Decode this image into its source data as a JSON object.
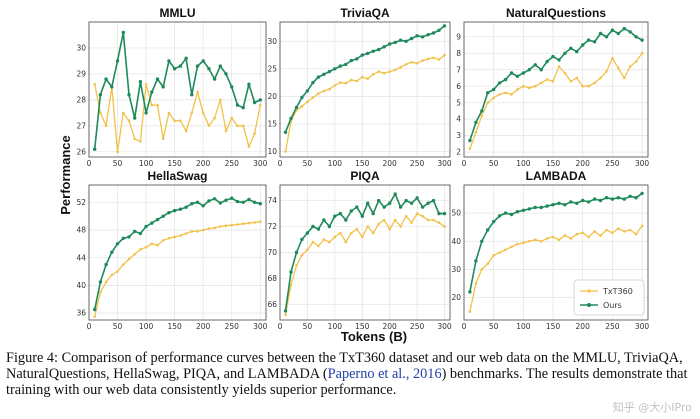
{
  "figure": {
    "ylabel": "Performance",
    "xlabel": "Tokens (B)",
    "legend": {
      "entries": [
        "TxT360",
        "Ours"
      ]
    }
  },
  "colors": {
    "txt360": "#f2c14a",
    "ours": "#1e8a5a"
  },
  "chart_data": [
    {
      "type": "line",
      "title": "MMLU",
      "xlim": [
        0,
        310
      ],
      "ylim": [
        25.8,
        31.0
      ],
      "xticks": [
        0,
        50,
        100,
        150,
        200,
        250,
        300
      ],
      "yticks": [
        26,
        27,
        28,
        29,
        30
      ],
      "x": [
        10,
        20,
        30,
        40,
        50,
        60,
        70,
        80,
        90,
        100,
        110,
        120,
        130,
        140,
        150,
        160,
        170,
        180,
        190,
        200,
        210,
        220,
        230,
        240,
        250,
        260,
        270,
        280,
        290,
        300
      ],
      "series": [
        {
          "name": "TxT360",
          "values": [
            28.6,
            27.5,
            27.0,
            28.5,
            26.0,
            27.5,
            27.2,
            26.5,
            26.4,
            28.6,
            27.8,
            27.8,
            26.5,
            27.5,
            27.2,
            27.2,
            26.8,
            27.5,
            28.3,
            27.5,
            27.0,
            27.3,
            28.0,
            26.8,
            27.3,
            27.0,
            27.0,
            26.2,
            26.7,
            27.8
          ]
        },
        {
          "name": "Ours",
          "values": [
            26.1,
            28.2,
            28.8,
            28.5,
            29.5,
            30.6,
            28.2,
            27.3,
            28.7,
            27.5,
            28.3,
            28.8,
            28.5,
            29.5,
            29.2,
            29.3,
            29.6,
            28.2,
            29.3,
            29.5,
            29.2,
            28.8,
            29.3,
            29.0,
            28.5,
            27.8,
            27.7,
            28.6,
            27.9,
            28.0
          ]
        }
      ]
    },
    {
      "type": "line",
      "title": "TriviaQA",
      "xlim": [
        0,
        310
      ],
      "ylim": [
        9,
        33.5
      ],
      "xticks": [
        0,
        50,
        100,
        150,
        200,
        250,
        300
      ],
      "yticks": [
        10,
        15,
        20,
        25,
        30
      ],
      "x": [
        10,
        20,
        30,
        40,
        50,
        60,
        70,
        80,
        90,
        100,
        110,
        120,
        130,
        140,
        150,
        160,
        170,
        180,
        190,
        200,
        210,
        220,
        230,
        240,
        250,
        260,
        270,
        280,
        290,
        300
      ],
      "series": [
        {
          "name": "TxT360",
          "values": [
            10.0,
            15.5,
            17.5,
            18.2,
            19.0,
            19.8,
            20.5,
            21.0,
            21.3,
            22.0,
            22.5,
            22.4,
            23.0,
            22.8,
            23.5,
            23.2,
            24.0,
            24.5,
            24.2,
            24.5,
            24.8,
            25.3,
            25.8,
            26.2,
            26.0,
            26.5,
            26.8,
            27.0,
            26.7,
            27.5
          ]
        },
        {
          "name": "Ours",
          "values": [
            13.5,
            16.0,
            18.0,
            19.8,
            21.0,
            22.5,
            23.5,
            24.0,
            24.5,
            25.0,
            25.5,
            25.8,
            26.5,
            26.8,
            27.5,
            27.8,
            28.2,
            28.5,
            29.0,
            29.5,
            29.8,
            30.2,
            30.0,
            30.5,
            31.0,
            30.8,
            31.2,
            31.5,
            32.0,
            32.8
          ]
        }
      ]
    },
    {
      "type": "line",
      "title": "NaturalQuestions",
      "xlim": [
        0,
        310
      ],
      "ylim": [
        1.7,
        9.9
      ],
      "xticks": [
        0,
        50,
        100,
        150,
        200,
        250,
        300
      ],
      "yticks": [
        2,
        3,
        4,
        5,
        6,
        7,
        8,
        9
      ],
      "x": [
        10,
        20,
        30,
        40,
        50,
        60,
        70,
        80,
        90,
        100,
        110,
        120,
        130,
        140,
        150,
        160,
        170,
        180,
        190,
        200,
        210,
        220,
        230,
        240,
        250,
        260,
        270,
        280,
        290,
        300
      ],
      "series": [
        {
          "name": "TxT360",
          "values": [
            2.2,
            3.2,
            4.2,
            5.0,
            5.3,
            5.5,
            5.6,
            5.5,
            5.8,
            6.0,
            5.9,
            6.0,
            6.2,
            6.4,
            6.3,
            7.2,
            6.8,
            6.3,
            6.5,
            6.0,
            6.0,
            6.2,
            6.5,
            6.9,
            7.7,
            7.1,
            6.5,
            7.2,
            7.5,
            8.0
          ]
        },
        {
          "name": "Ours",
          "values": [
            2.7,
            3.8,
            4.5,
            5.6,
            5.8,
            6.2,
            6.4,
            6.8,
            6.6,
            6.8,
            7.0,
            7.3,
            7.0,
            7.5,
            7.8,
            7.6,
            8.0,
            8.3,
            8.1,
            8.5,
            8.8,
            8.7,
            9.2,
            9.0,
            9.4,
            9.2,
            9.5,
            9.3,
            9.0,
            8.8
          ]
        }
      ]
    },
    {
      "type": "line",
      "title": "HellaSwag",
      "xlim": [
        0,
        310
      ],
      "ylim": [
        35,
        54.5
      ],
      "xticks": [
        0,
        50,
        100,
        150,
        200,
        250,
        300
      ],
      "yticks": [
        36,
        40,
        44,
        48,
        52
      ],
      "x": [
        10,
        20,
        30,
        40,
        50,
        60,
        70,
        80,
        90,
        100,
        110,
        120,
        130,
        140,
        150,
        160,
        170,
        180,
        190,
        200,
        210,
        220,
        230,
        240,
        250,
        260,
        270,
        280,
        290,
        300
      ],
      "series": [
        {
          "name": "TxT360",
          "values": [
            35.5,
            39.0,
            40.5,
            41.5,
            42.0,
            43.0,
            43.8,
            44.5,
            45.2,
            45.5,
            46.0,
            45.8,
            46.5,
            46.8,
            47.0,
            47.2,
            47.5,
            47.8,
            47.8,
            48.0,
            48.2,
            48.3,
            48.5,
            48.6,
            48.7,
            48.8,
            48.9,
            49.0,
            49.1,
            49.2
          ]
        },
        {
          "name": "Ours",
          "values": [
            36.5,
            40.5,
            43.0,
            44.8,
            46.0,
            46.8,
            47.0,
            47.8,
            47.5,
            48.5,
            49.0,
            49.5,
            50.0,
            50.5,
            50.8,
            51.0,
            51.3,
            51.8,
            52.0,
            51.5,
            52.2,
            52.5,
            51.9,
            52.3,
            52.6,
            52.1,
            52.0,
            52.4,
            52.0,
            51.8
          ]
        }
      ]
    },
    {
      "type": "line",
      "title": "PIQA",
      "xlim": [
        0,
        310
      ],
      "ylim": [
        64.8,
        75.2
      ],
      "xticks": [
        0,
        50,
        100,
        150,
        200,
        250,
        300
      ],
      "yticks": [
        66,
        68,
        70,
        72,
        74
      ],
      "x": [
        10,
        20,
        30,
        40,
        50,
        60,
        70,
        80,
        90,
        100,
        110,
        120,
        130,
        140,
        150,
        160,
        170,
        180,
        190,
        200,
        210,
        220,
        230,
        240,
        250,
        260,
        270,
        280,
        290,
        300
      ],
      "series": [
        {
          "name": "TxT360",
          "values": [
            65.2,
            67.5,
            69.0,
            69.8,
            70.2,
            70.8,
            70.5,
            71.0,
            70.8,
            71.2,
            71.5,
            70.8,
            71.5,
            71.8,
            71.2,
            72.0,
            71.5,
            72.2,
            72.5,
            71.8,
            72.5,
            72.0,
            72.8,
            72.3,
            73.0,
            72.8,
            72.5,
            72.5,
            72.3,
            72.0
          ]
        },
        {
          "name": "Ours",
          "values": [
            65.5,
            68.5,
            70.0,
            71.0,
            71.5,
            72.0,
            71.8,
            72.5,
            72.0,
            72.8,
            73.0,
            72.5,
            73.2,
            73.5,
            72.8,
            73.8,
            73.0,
            74.0,
            73.5,
            73.8,
            74.5,
            73.5,
            74.0,
            73.8,
            74.2,
            73.5,
            73.8,
            74.0,
            73.0,
            73.0
          ]
        }
      ]
    },
    {
      "type": "line",
      "title": "LAMBADA",
      "xlim": [
        0,
        310
      ],
      "ylim": [
        12,
        60
      ],
      "xticks": [
        0,
        50,
        100,
        150,
        200,
        250,
        300
      ],
      "yticks": [
        20,
        30,
        40,
        50
      ],
      "legend_position": "bottom-right",
      "x": [
        10,
        20,
        30,
        40,
        50,
        60,
        70,
        80,
        90,
        100,
        110,
        120,
        130,
        140,
        150,
        160,
        170,
        180,
        190,
        200,
        210,
        220,
        230,
        240,
        250,
        260,
        270,
        280,
        290,
        300
      ],
      "series": [
        {
          "name": "TxT360",
          "values": [
            15.0,
            25.0,
            30.0,
            32.0,
            35.0,
            36.0,
            37.0,
            38.0,
            39.0,
            39.5,
            40.0,
            40.5,
            40.0,
            41.0,
            41.5,
            40.5,
            42.0,
            41.0,
            42.5,
            43.0,
            41.5,
            43.5,
            42.0,
            44.0,
            43.0,
            44.5,
            43.5,
            44.0,
            42.5,
            45.5
          ]
        },
        {
          "name": "Ours",
          "values": [
            22.0,
            33.0,
            40.0,
            44.0,
            47.0,
            49.0,
            50.0,
            49.5,
            50.5,
            51.0,
            51.5,
            52.0,
            52.0,
            52.5,
            53.0,
            53.5,
            53.0,
            54.0,
            53.5,
            54.5,
            54.0,
            55.0,
            54.5,
            55.5,
            55.0,
            55.5,
            55.0,
            56.0,
            55.5,
            57.0
          ]
        }
      ]
    }
  ],
  "caption": {
    "prefix": "Figure 4:  Comparison of performance curves between the TxT360 dataset and our web data on the MMLU, TriviaQA, NaturalQuestions, HellaSwag, PIQA, and LAMBADA (",
    "citation": "Paperno et al., 2016",
    "suffix": ") benchmarks.  The results demonstrate that training with our web data consistently yields superior performance."
  },
  "watermark": "知乎 @大小IPro"
}
